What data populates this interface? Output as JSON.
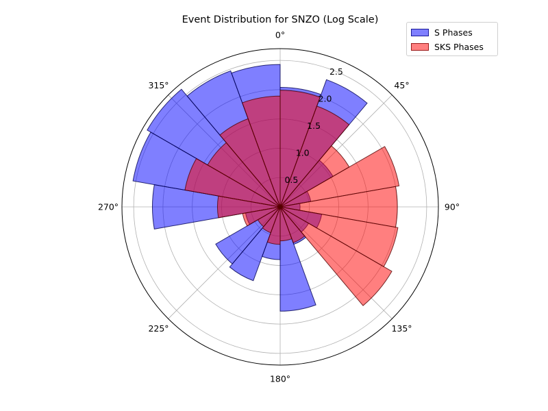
{
  "chart_data": {
    "type": "polar-bar",
    "title": "Event Distribution for SNZO (Log Scale)",
    "theta_ticks": [
      "0°",
      "45°",
      "90°",
      "135°",
      "180°",
      "225°",
      "270°",
      "315°"
    ],
    "r_ticks": [
      "0.5",
      "1.0",
      "1.5",
      "2.0",
      "2.5"
    ],
    "r_tick_values": [
      0.5,
      1.0,
      1.5,
      2.0,
      2.5
    ],
    "rlim": [
      0,
      2.7
    ],
    "bin_width_deg": 20,
    "bin_centers_deg": [
      10,
      30,
      50,
      70,
      90,
      110,
      130,
      150,
      170,
      190,
      210,
      230,
      250,
      270,
      290,
      310,
      330,
      350
    ],
    "series": [
      {
        "name": "S Phases",
        "color": "#0000ff",
        "values": [
          2.04,
          2.31,
          1.04,
          0.53,
          0.34,
          0.72,
          0.56,
          0.68,
          1.78,
          0.9,
          1.34,
          1.27,
          0.6,
          2.18,
          2.55,
          2.62,
          2.47,
          2.43
        ]
      },
      {
        "name": "SKS Phases",
        "color": "#ff0000",
        "values": [
          1.99,
          1.83,
          1.36,
          2.06,
          2.0,
          2.04,
          2.2,
          0.65,
          0.58,
          0.64,
          0.47,
          0.44,
          0.65,
          1.07,
          1.65,
          1.43,
          1.6,
          1.89
        ]
      }
    ],
    "legend_position": "upper right"
  }
}
